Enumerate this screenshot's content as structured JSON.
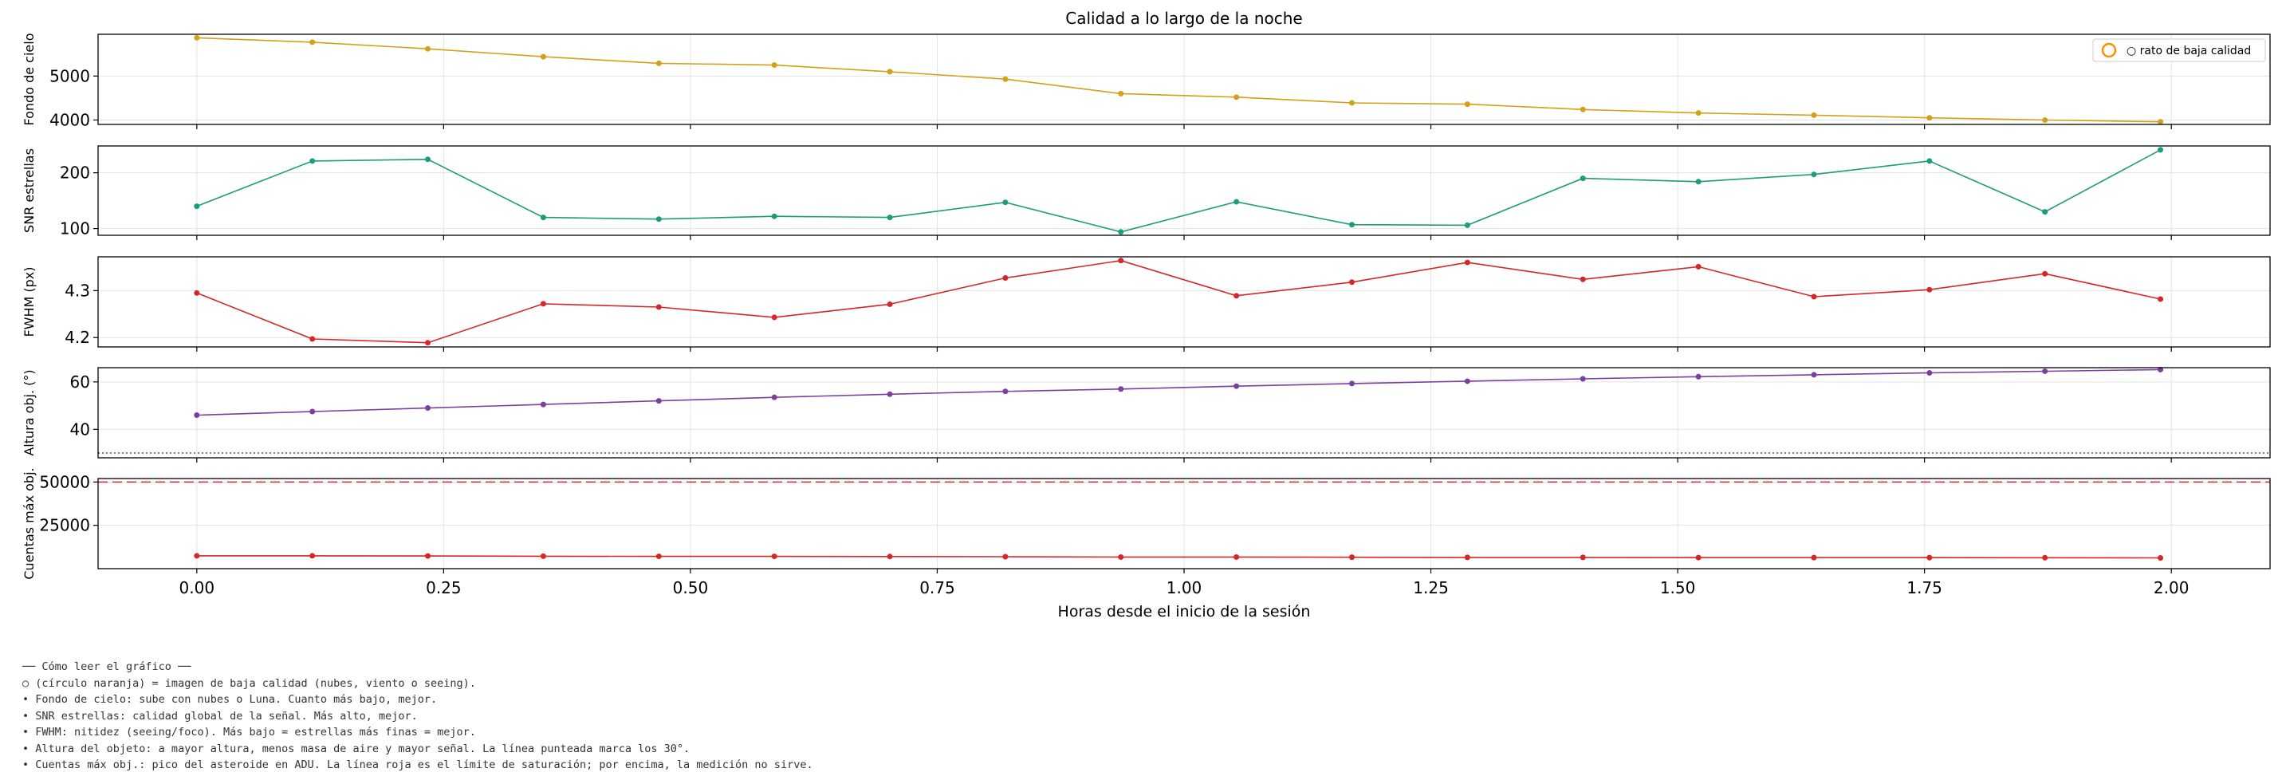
{
  "chart_data": {
    "type": "line",
    "title": "Calidad a lo largo de la noche",
    "xlabel": "Horas desde el inicio de la sesión",
    "xlim": [
      -0.1,
      2.1
    ],
    "x_ticks": [
      0.0,
      0.25,
      0.5,
      0.75,
      1.0,
      1.25,
      1.5,
      1.75,
      2.0
    ],
    "x_tick_labels": [
      "0.00",
      "0.25",
      "0.50",
      "0.75",
      "1.00",
      "1.25",
      "1.50",
      "1.75",
      "2.00"
    ],
    "x": [
      0.0,
      0.117,
      0.234,
      0.351,
      0.468,
      0.585,
      0.702,
      0.819,
      0.936,
      1.053,
      1.17,
      1.287,
      1.404,
      1.521,
      1.638,
      1.755,
      1.872,
      1.989
    ],
    "grid": true,
    "panels": [
      {
        "ylabel": "Fondo de cielo",
        "color": "#d4a017",
        "ylim": [
          3900,
          5950
        ],
        "y_ticks": [
          4000,
          5000
        ],
        "values": [
          5870,
          5770,
          5620,
          5440,
          5290,
          5250,
          5100,
          4930,
          4600,
          4520,
          4390,
          4360,
          4240,
          4160,
          4110,
          4050,
          4000,
          3960
        ],
        "legend": {
          "label": "○ rato de baja calidad",
          "position": "upper right",
          "marker_color": "#ff8c00"
        }
      },
      {
        "ylabel": "SNR estrellas",
        "color": "#1b9e77",
        "ylim": [
          88,
          248
        ],
        "y_ticks": [
          100,
          200
        ],
        "values": [
          140,
          221,
          224,
          120,
          117,
          122,
          120,
          147,
          94,
          148,
          107,
          106,
          190,
          184,
          197,
          221,
          130,
          241
        ]
      },
      {
        "ylabel": "FWHM (px)",
        "color": "#d62728",
        "ylim": [
          4.18,
          4.372
        ],
        "y_ticks": [
          4.2,
          4.3
        ],
        "y_tick_labels": [
          "4.2",
          "4.3"
        ],
        "values": [
          4.295,
          4.197,
          4.189,
          4.272,
          4.265,
          4.243,
          4.271,
          4.327,
          4.364,
          4.289,
          4.318,
          4.36,
          4.324,
          4.351,
          4.287,
          4.302,
          4.336,
          4.282
        ]
      },
      {
        "ylabel": "Altura obj. (°)",
        "color": "#7b3fa0",
        "ylim": [
          28,
          66
        ],
        "y_ticks": [
          40,
          60
        ],
        "values": [
          46,
          47.5,
          49,
          50.5,
          52,
          53.5,
          54.8,
          56,
          57,
          58.2,
          59.3,
          60.3,
          61.3,
          62.2,
          63,
          63.8,
          64.5,
          65.2
        ],
        "reference_line": {
          "value": 30,
          "style": "dotted",
          "color": "#555555"
        }
      },
      {
        "ylabel": "Cuentas máx obj.",
        "color": "#d62728",
        "ylim": [
          0,
          52000
        ],
        "y_ticks": [
          25000,
          50000
        ],
        "values": [
          7400,
          7400,
          7300,
          7200,
          7100,
          7100,
          7000,
          6900,
          6700,
          6700,
          6600,
          6500,
          6500,
          6400,
          6400,
          6400,
          6300,
          6200
        ],
        "reference_line": {
          "value": 50000,
          "style": "dashed",
          "color": "#d62728"
        }
      }
    ]
  },
  "notes": {
    "heading": "── Cómo leer el gráfico ──",
    "lines": [
      "○ (círculo naranja) = imagen de baja calidad (nubes, viento o seeing).",
      "• Fondo de cielo: sube con nubes o Luna. Cuanto más bajo, mejor.",
      "• SNR estrellas: calidad global de la señal. Más alto, mejor.",
      "• FWHM: nitidez (seeing/foco). Más bajo = estrellas más finas = mejor.",
      "• Altura del objeto: a mayor altura, menos masa de aire y mayor señal. La línea punteada marca los 30°.",
      "• Cuentas máx obj.: pico del asteroide en ADU. La línea roja es el límite de saturación; por encima, la medición no sirve."
    ]
  }
}
